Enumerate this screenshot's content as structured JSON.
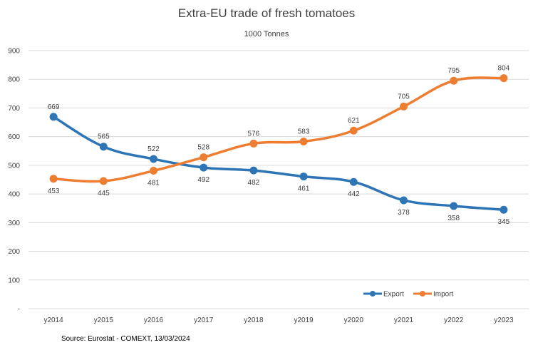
{
  "chart_data": {
    "type": "line",
    "title": "Extra-EU trade of fresh tomatoes",
    "subtitle": "1000 Tonnes",
    "categories": [
      "y2014",
      "y2015",
      "y2016",
      "y2017",
      "y2018",
      "y2019",
      "y2020",
      "y2021",
      "y2022",
      "y2023"
    ],
    "ylim": [
      0,
      900
    ],
    "yticks": [
      "-",
      "100",
      "200",
      "300",
      "400",
      "500",
      "600",
      "700",
      "800",
      "900"
    ],
    "grid": true,
    "legend_position": "bottom-right",
    "series": [
      {
        "name": "Export",
        "color": "#2e75b6",
        "values": [
          669,
          565,
          522,
          492,
          482,
          461,
          442,
          378,
          358,
          345
        ],
        "labels": [
          "669",
          "565",
          "522",
          "492",
          "482",
          "461",
          "442",
          "378",
          "358",
          "345"
        ]
      },
      {
        "name": "Import",
        "color": "#ed7d31",
        "values": [
          453,
          445,
          481,
          528,
          576,
          583,
          621,
          705,
          795,
          804
        ],
        "labels": [
          "453",
          "445",
          "481",
          "528",
          "576",
          "583",
          "621",
          "705",
          "795",
          "804"
        ]
      }
    ],
    "source": "Source: Eurostat - COMEXT, 13/03/2024"
  }
}
